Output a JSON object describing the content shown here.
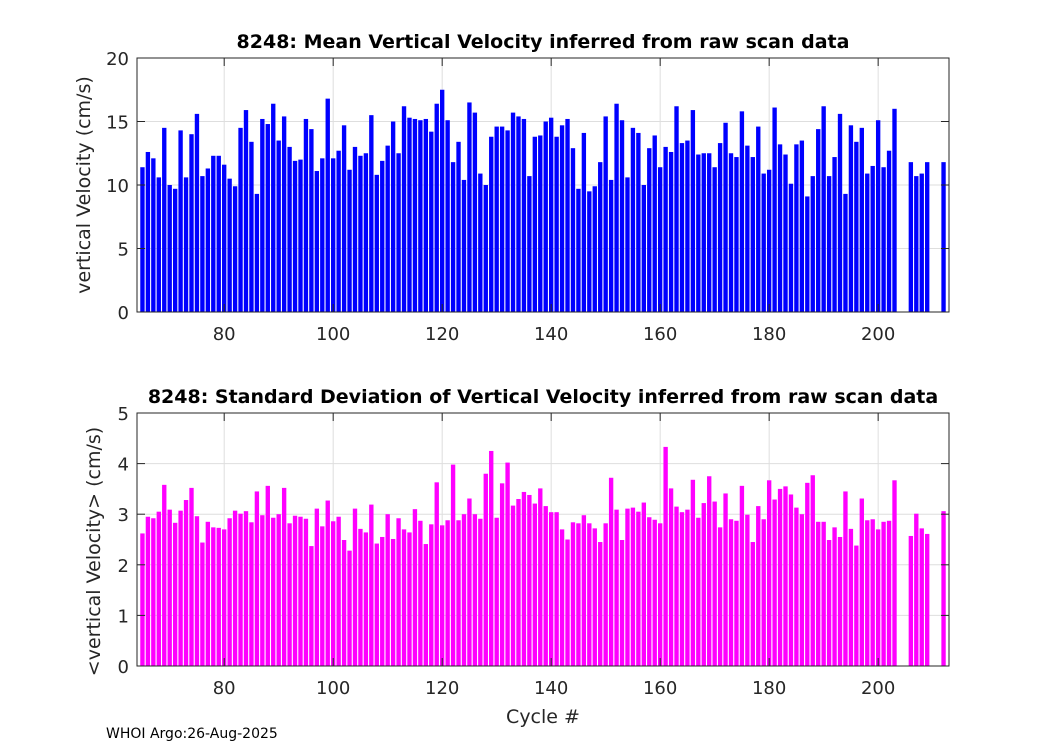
{
  "footer": "WHOI Argo:26-Aug-2025",
  "chart_data": [
    {
      "type": "bar",
      "title": "8248: Mean Vertical Velocity inferred from raw scan data",
      "xlabel": "",
      "ylabel": "vertical Velocity (cm/s)",
      "xlim": [
        64,
        213
      ],
      "ylim": [
        0,
        20
      ],
      "xticks": [
        80,
        100,
        120,
        140,
        160,
        180,
        200
      ],
      "yticks": [
        0,
        5,
        10,
        15,
        20
      ],
      "grid": true,
      "color": "#0000ff",
      "x_start": 65,
      "values": [
        11.4,
        12.6,
        12.1,
        10.6,
        14.5,
        10.0,
        9.7,
        14.3,
        10.6,
        14.0,
        15.6,
        10.7,
        11.3,
        12.3,
        12.3,
        11.6,
        10.5,
        9.9,
        14.5,
        15.9,
        13.4,
        9.3,
        15.2,
        14.8,
        16.4,
        13.5,
        15.4,
        13.0,
        11.9,
        12.0,
        15.2,
        14.4,
        11.1,
        12.1,
        16.8,
        12.1,
        12.7,
        14.7,
        11.2,
        13.0,
        12.3,
        12.5,
        15.5,
        10.8,
        11.9,
        13.1,
        15.0,
        12.5,
        16.2,
        15.3,
        15.2,
        15.1,
        15.2,
        14.2,
        16.4,
        17.5,
        15.1,
        11.8,
        13.4,
        10.4,
        16.5,
        15.7,
        10.9,
        10.0,
        13.8,
        14.6,
        14.6,
        14.3,
        15.7,
        15.4,
        15.2,
        10.7,
        13.8,
        13.9,
        15.0,
        15.3,
        13.8,
        14.7,
        15.2,
        12.9,
        9.7,
        14.1,
        9.5,
        9.9,
        11.8,
        15.4,
        10.4,
        16.4,
        15.1,
        10.6,
        14.5,
        14.1,
        10.0,
        12.9,
        13.9,
        11.4,
        13.0,
        12.6,
        16.2,
        13.3,
        13.5,
        15.9,
        12.4,
        12.5,
        12.5,
        11.4,
        13.3,
        14.9,
        12.5,
        12.2,
        15.8,
        13.1,
        12.2,
        14.6,
        10.9,
        11.2,
        16.1,
        13.2,
        12.4,
        10.1,
        13.2,
        13.5,
        9.1,
        10.7,
        14.4,
        16.2,
        10.7,
        12.2,
        15.6,
        9.3,
        14.7,
        13.4,
        14.5,
        10.9,
        11.5,
        15.1,
        11.4,
        12.7,
        16.0,
        null,
        null,
        11.8,
        10.7,
        10.9,
        11.8,
        null,
        null,
        11.8
      ]
    },
    {
      "type": "bar",
      "title": "8248: Standard Deviation of Vertical Velocity inferred from raw scan data",
      "xlabel": "Cycle #",
      "ylabel": "<vertical Velocity> (cm/s)",
      "xlim": [
        64,
        213
      ],
      "ylim": [
        0,
        5
      ],
      "xticks": [
        80,
        100,
        120,
        140,
        160,
        180,
        200
      ],
      "yticks": [
        0,
        1,
        2,
        3,
        4,
        5
      ],
      "grid": true,
      "color": "#ff00ff",
      "x_start": 65,
      "values": [
        2.62,
        2.95,
        2.92,
        3.05,
        3.58,
        3.09,
        2.83,
        3.07,
        3.28,
        3.52,
        2.96,
        2.44,
        2.85,
        2.74,
        2.73,
        2.7,
        2.92,
        3.07,
        3.01,
        3.06,
        2.84,
        3.45,
        2.98,
        3.56,
        2.93,
        3.0,
        3.52,
        2.82,
        2.97,
        2.95,
        2.91,
        2.37,
        3.11,
        2.76,
        3.27,
        2.86,
        2.95,
        2.49,
        2.28,
        3.11,
        2.71,
        2.64,
        3.19,
        2.42,
        2.55,
        3.0,
        2.51,
        2.92,
        2.7,
        2.64,
        3.1,
        2.87,
        2.41,
        2.8,
        3.63,
        2.78,
        2.88,
        3.98,
        2.88,
        3.0,
        3.31,
        3.0,
        2.91,
        3.8,
        4.25,
        2.93,
        3.61,
        4.02,
        3.17,
        3.3,
        3.44,
        3.38,
        3.21,
        3.51,
        3.16,
        3.04,
        3.04,
        2.7,
        2.5,
        2.84,
        2.82,
        2.98,
        2.82,
        2.72,
        2.45,
        2.82,
        3.72,
        3.09,
        2.49,
        3.11,
        3.13,
        3.05,
        3.23,
        2.94,
        2.89,
        2.82,
        4.33,
        3.51,
        3.15,
        3.04,
        3.09,
        3.68,
        2.93,
        3.22,
        3.75,
        3.25,
        2.74,
        3.41,
        2.9,
        2.87,
        3.56,
        2.99,
        2.45,
        3.16,
        2.9,
        3.67,
        3.29,
        3.5,
        3.55,
        3.39,
        3.13,
        3.0,
        3.62,
        3.77,
        2.85,
        2.85,
        2.49,
        2.74,
        2.55,
        3.45,
        2.71,
        2.38,
        3.31,
        2.88,
        2.9,
        2.7,
        2.85,
        2.87,
        3.67,
        null,
        null,
        2.57,
        3.01,
        2.72,
        2.61,
        null,
        null,
        3.06
      ]
    }
  ]
}
